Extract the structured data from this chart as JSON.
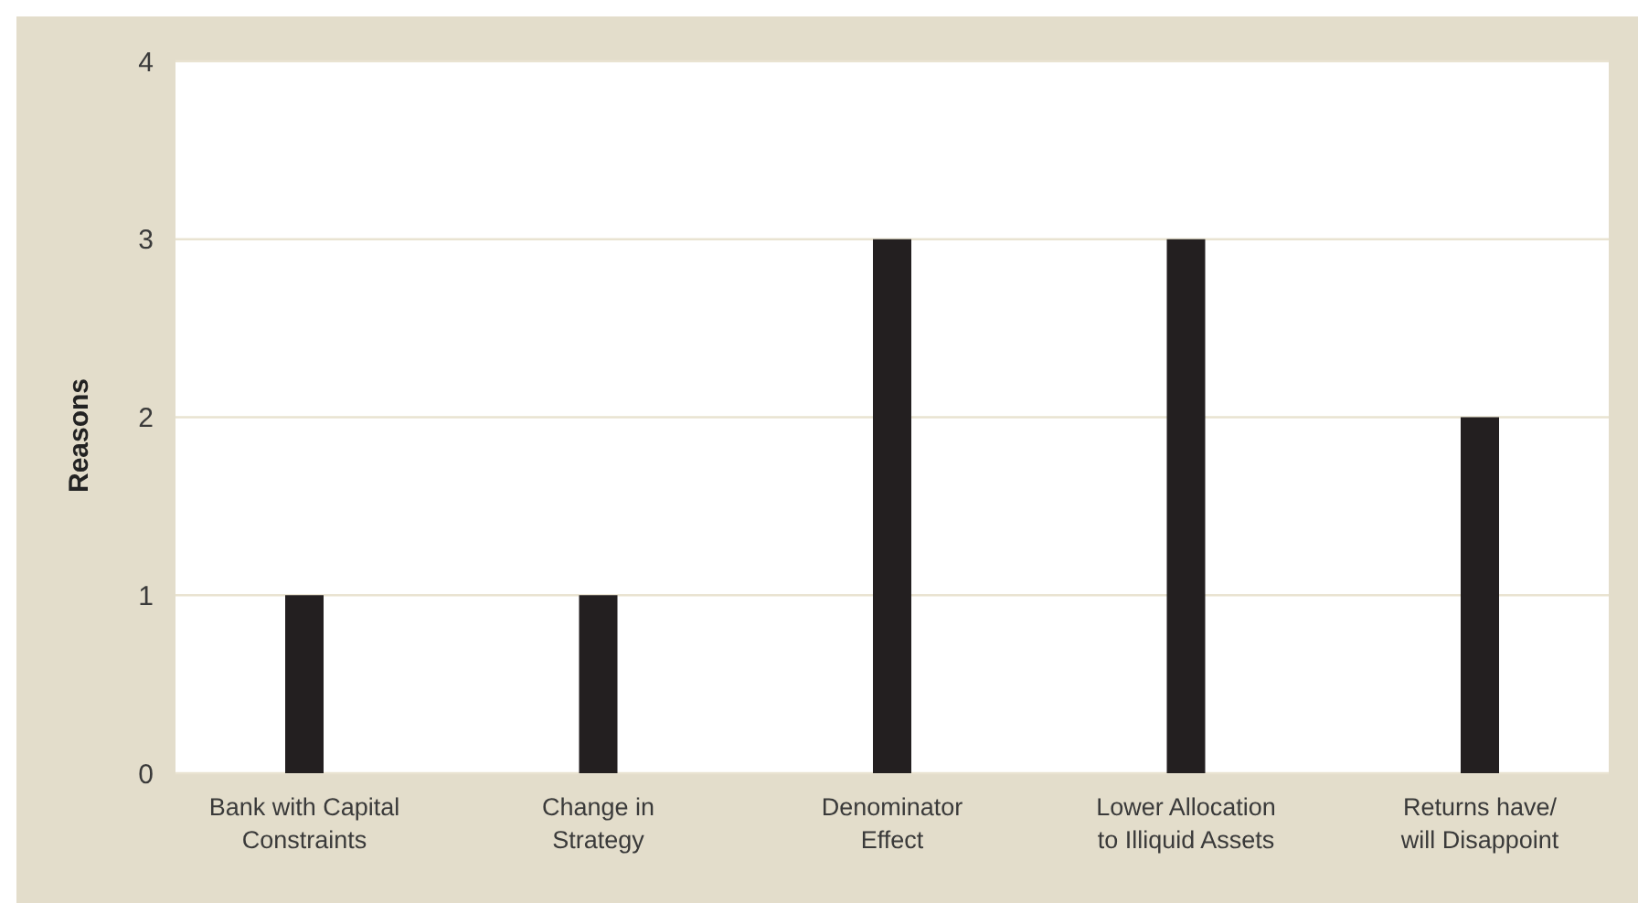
{
  "chart_data": {
    "type": "bar",
    "ylabel": "Reasons",
    "categories": [
      "Bank with Capital\nConstraints",
      "Change in\nStrategy",
      "Denominator\nEffect",
      "Lower Allocation\nto Illiquid Assets",
      "Returns have/\nwill Disappoint"
    ],
    "values": [
      1,
      1,
      3,
      3,
      2
    ],
    "color": "#231f20",
    "ylim": [
      0,
      4
    ],
    "yticks": [
      0,
      1,
      2,
      3,
      4
    ],
    "grid": "y"
  }
}
